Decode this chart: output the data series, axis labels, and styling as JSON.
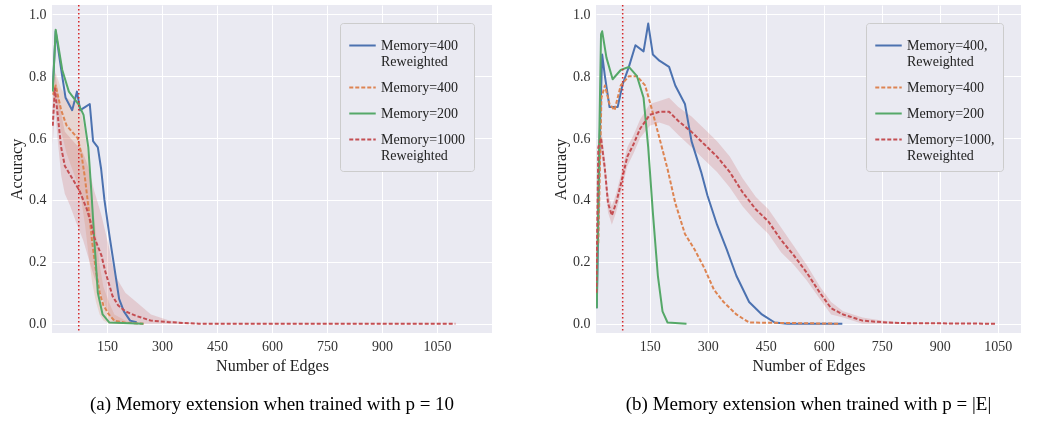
{
  "chart_data": [
    {
      "type": "line",
      "title": "(a) Memory extension when trained with p = 10",
      "xlabel": "Number of Edges",
      "ylabel": "Accuracy",
      "xlim": [
        0,
        1200
      ],
      "ylim": [
        -0.03,
        1.03
      ],
      "xticks": [
        150,
        300,
        450,
        600,
        750,
        900,
        1050
      ],
      "yticks": [
        {
          "value": 0,
          "label": "0.0"
        },
        {
          "value": 0.2,
          "label": "0.2"
        },
        {
          "value": 0.4,
          "label": "0.4"
        },
        {
          "value": 0.6,
          "label": "0.6"
        },
        {
          "value": 0.8,
          "label": "0.8"
        },
        {
          "value": 1,
          "label": "1.0"
        }
      ],
      "grid": true,
      "legend": "top right",
      "ref_lines": [
        {
          "axis": "x",
          "value": 73,
          "color": "#d62728",
          "line_style": "dotted"
        }
      ],
      "series": [
        {
          "name": "Memory=400\nReweighted",
          "color": "#4c72b0",
          "line_style": "solid",
          "x": [
            2,
            10,
            24,
            37,
            55,
            68,
            77,
            90,
            103,
            112,
            125,
            134,
            143,
            156,
            169,
            183,
            196,
            213,
            231
          ],
          "values": [
            0.76,
            0.945,
            0.83,
            0.73,
            0.69,
            0.75,
            0.69,
            0.7,
            0.71,
            0.59,
            0.57,
            0.5,
            0.4,
            0.29,
            0.19,
            0.08,
            0.04,
            0.01,
            0.005
          ]
        },
        {
          "name": "Memory=400",
          "color": "#dd8452",
          "line_style": "dashed",
          "x": [
            3,
            10,
            25,
            40,
            55,
            70,
            80,
            90,
            100,
            110,
            120,
            130,
            140,
            155,
            170,
            200,
            250
          ],
          "values": [
            0.74,
            0.77,
            0.69,
            0.64,
            0.62,
            0.6,
            0.55,
            0.47,
            0.37,
            0.26,
            0.17,
            0.1,
            0.06,
            0.03,
            0.01,
            0.003,
            0
          ],
          "lower": [
            0.7,
            0.73,
            0.62,
            0.55,
            0.5,
            0.45,
            0.4,
            0.32,
            0.22,
            0.13,
            0.07,
            0.03,
            0.01,
            0,
            0,
            0,
            0
          ],
          "upper": [
            0.78,
            0.81,
            0.76,
            0.73,
            0.72,
            0.72,
            0.68,
            0.62,
            0.52,
            0.4,
            0.29,
            0.19,
            0.12,
            0.07,
            0.03,
            0.01,
            0
          ]
        },
        {
          "name": "Memory=200",
          "color": "#55a868",
          "line_style": "solid",
          "x": [
            2,
            10,
            28,
            46,
            72,
            86,
            99,
            108,
            116,
            125,
            138,
            156,
            249
          ],
          "values": [
            0.75,
            0.95,
            0.82,
            0.75,
            0.71,
            0.675,
            0.57,
            0.415,
            0.26,
            0.1,
            0.03,
            0.004,
            0
          ]
        },
        {
          "name": "Memory=1000\nReweighted",
          "color": "#c44e52",
          "line_style": "dashed",
          "x": [
            2,
            8,
            15,
            25,
            35,
            50,
            65,
            75,
            85,
            95,
            105,
            115,
            125,
            135,
            145,
            155,
            165,
            180,
            200,
            230,
            270,
            320,
            400,
            1100
          ],
          "values": [
            0.64,
            0.76,
            0.68,
            0.57,
            0.51,
            0.48,
            0.45,
            0.43,
            0.4,
            0.37,
            0.33,
            0.28,
            0.25,
            0.22,
            0.17,
            0.13,
            0.09,
            0.06,
            0.04,
            0.025,
            0.01,
            0.005,
            0,
            0
          ],
          "lower": [
            0.58,
            0.7,
            0.6,
            0.48,
            0.42,
            0.38,
            0.33,
            0.3,
            0.27,
            0.23,
            0.19,
            0.15,
            0.12,
            0.09,
            0.06,
            0.03,
            0.01,
            0,
            0,
            0,
            0,
            0,
            0,
            0
          ],
          "upper": [
            0.7,
            0.82,
            0.76,
            0.68,
            0.62,
            0.6,
            0.58,
            0.57,
            0.55,
            0.52,
            0.48,
            0.43,
            0.39,
            0.35,
            0.3,
            0.25,
            0.19,
            0.14,
            0.1,
            0.07,
            0.03,
            0.01,
            0,
            0
          ]
        }
      ]
    },
    {
      "type": "line",
      "title": "(b) Memory extension when trained with p = |E|",
      "xlabel": "Number of Edges",
      "ylabel": "Accuracy",
      "xlim": [
        11,
        1110
      ],
      "ylim": [
        -0.03,
        1.03
      ],
      "xticks": [
        150,
        300,
        450,
        600,
        750,
        900,
        1050
      ],
      "yticks": [
        {
          "value": 0,
          "label": "0.0"
        },
        {
          "value": 0.2,
          "label": "0.2"
        },
        {
          "value": 0.4,
          "label": "0.4"
        },
        {
          "value": 0.6,
          "label": "0.6"
        },
        {
          "value": 0.8,
          "label": "0.8"
        },
        {
          "value": 1,
          "label": "1.0"
        }
      ],
      "grid": true,
      "legend": "top right",
      "ref_lines": [
        {
          "axis": "x",
          "value": 80,
          "color": "#d62728",
          "line_style": "dotted"
        }
      ],
      "series": [
        {
          "name": "Memory=400,\nReweighted",
          "color": "#4c72b0",
          "line_style": "solid",
          "x": [
            13,
            21,
            27,
            34,
            46,
            67,
            79,
            96,
            113,
            134,
            146,
            158,
            175,
            200,
            216,
            241,
            258,
            283,
            299,
            324,
            349,
            374,
            407,
            440,
            473,
            506,
            648
          ],
          "values": [
            0.05,
            0.62,
            0.87,
            0.8,
            0.7,
            0.7,
            0.77,
            0.83,
            0.9,
            0.88,
            0.97,
            0.87,
            0.85,
            0.83,
            0.77,
            0.71,
            0.59,
            0.49,
            0.415,
            0.32,
            0.24,
            0.155,
            0.07,
            0.03,
            0.004,
            0,
            0
          ]
        },
        {
          "name": "Memory=400",
          "color": "#dd8452",
          "line_style": "dashed",
          "x": [
            17,
            25,
            34,
            46,
            59,
            75,
            96,
            117,
            138,
            154,
            175,
            196,
            216,
            241,
            266,
            291,
            316,
            341,
            374,
            407,
            640
          ],
          "values": [
            0.26,
            0.73,
            0.77,
            0.71,
            0.69,
            0.77,
            0.8,
            0.8,
            0.77,
            0.7,
            0.6,
            0.5,
            0.39,
            0.29,
            0.24,
            0.18,
            0.11,
            0.07,
            0.03,
            0.004,
            0
          ]
        },
        {
          "name": "Memory=200",
          "color": "#55a868",
          "line_style": "solid",
          "x": [
            13,
            17,
            24,
            27,
            38,
            54,
            75,
            96,
            117,
            134,
            146,
            158,
            171,
            183,
            196,
            245
          ],
          "values": [
            0.05,
            0.42,
            0.935,
            0.945,
            0.86,
            0.79,
            0.82,
            0.83,
            0.8,
            0.73,
            0.57,
            0.36,
            0.155,
            0.04,
            0.004,
            0
          ]
        },
        {
          "name": "Memory=1000,\nReweighted",
          "color": "#c44e52",
          "line_style": "dashed",
          "x": [
            12,
            17,
            24,
            34,
            42,
            52,
            63,
            75,
            92,
            108,
            125,
            150,
            175,
            200,
            224,
            258,
            291,
            324,
            357,
            390,
            424,
            457,
            490,
            523,
            556,
            590,
            619,
            650,
            700,
            750,
            800,
            1045
          ],
          "values": [
            0.1,
            0.57,
            0.6,
            0.5,
            0.39,
            0.35,
            0.39,
            0.45,
            0.54,
            0.58,
            0.63,
            0.675,
            0.685,
            0.685,
            0.655,
            0.62,
            0.58,
            0.54,
            0.49,
            0.425,
            0.37,
            0.33,
            0.27,
            0.22,
            0.165,
            0.1,
            0.05,
            0.03,
            0.01,
            0.005,
            0.002,
            0
          ],
          "lower": [
            0.08,
            0.53,
            0.56,
            0.47,
            0.36,
            0.32,
            0.36,
            0.42,
            0.51,
            0.55,
            0.6,
            0.64,
            0.65,
            0.64,
            0.61,
            0.57,
            0.53,
            0.49,
            0.44,
            0.38,
            0.33,
            0.29,
            0.23,
            0.19,
            0.14,
            0.08,
            0.03,
            0.02,
            0,
            0,
            0,
            0
          ],
          "upper": [
            0.12,
            0.61,
            0.64,
            0.53,
            0.42,
            0.38,
            0.42,
            0.48,
            0.57,
            0.61,
            0.66,
            0.71,
            0.72,
            0.73,
            0.7,
            0.67,
            0.63,
            0.59,
            0.54,
            0.47,
            0.41,
            0.37,
            0.31,
            0.25,
            0.19,
            0.12,
            0.07,
            0.04,
            0.02,
            0.01,
            0.004,
            0
          ]
        }
      ]
    }
  ]
}
